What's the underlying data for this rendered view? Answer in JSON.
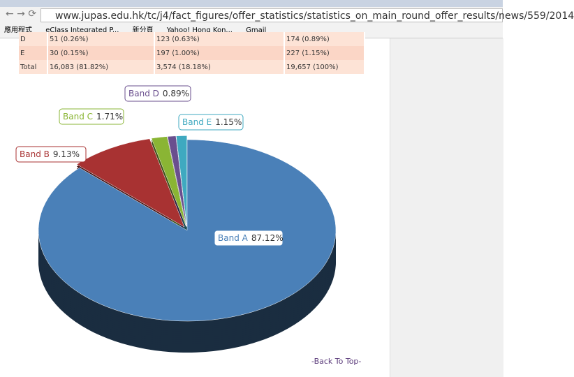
{
  "browser": {
    "url": "www.jupas.edu.hk/tc/j4/fact_figures/offer_statistics/statistics_on_main_round_offer_results/news/559/2014",
    "bookmarks": [
      "應用程式",
      "eClass Integrated P...",
      "新分頁",
      "Yahoo! Hong Kon...",
      "Gmail"
    ]
  },
  "table": {
    "rows": [
      [
        "D",
        "51 (0.26%)",
        "123 (0.63%)",
        "174 (0.89%)"
      ],
      [
        "E",
        "30 (0.15%)",
        "197 (1.00%)",
        "227 (1.15%)"
      ],
      [
        "Total",
        "16,083 (81.82%)",
        "3,574 (18.18%)",
        "19,657 (100%)"
      ]
    ]
  },
  "chart_data": {
    "type": "pie",
    "categories": [
      "Band A",
      "Band B",
      "Band C",
      "Band D",
      "Band E"
    ],
    "values": [
      87.12,
      9.13,
      1.71,
      0.89,
      1.15
    ],
    "value_labels": [
      "87.12%",
      "9.13%",
      "1.71%",
      "0.89%",
      "1.15%"
    ],
    "colors": [
      "#4a80b8",
      "#a83232",
      "#8ab534",
      "#6a4f8e",
      "#3fa9c0"
    ]
  },
  "footer": {
    "back_to_top": "-Back To Top-"
  }
}
